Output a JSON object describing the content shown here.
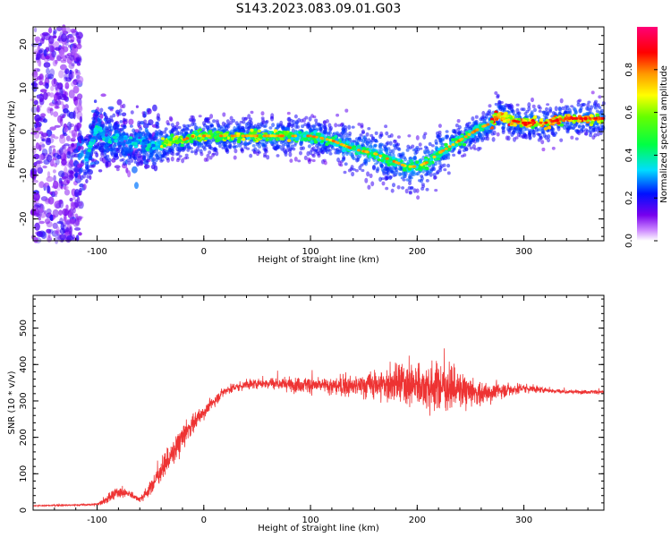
{
  "figure": {
    "title": "S143.2023.083.09.01.G03"
  },
  "chart_data": [
    {
      "type": "heatmap",
      "xlabel": "Height of straight line (km)",
      "ylabel": "Frequency (Hz)",
      "xlim": [
        -160,
        375
      ],
      "ylim": [
        -25,
        24
      ],
      "xticks": [
        -100,
        0,
        100,
        200,
        300
      ],
      "yticks": [
        -20,
        -10,
        0,
        10,
        20
      ],
      "colorbar": {
        "label": "Normalized spectral amplitude",
        "range": [
          0,
          1
        ],
        "ticks": [
          "0.0",
          "0.2",
          "0.4",
          "0.6",
          "0.8"
        ],
        "colormap": "rainbow (purple-blue-cyan-green-yellow-orange-red-magenta)"
      },
      "ridge": {
        "description": "Frequency ridge of peak spectral amplitude vs height",
        "x": [
          -120,
          -110,
          -100,
          -90,
          -80,
          -70,
          -60,
          -50,
          -40,
          -30,
          -20,
          -10,
          0,
          20,
          40,
          60,
          80,
          100,
          120,
          140,
          160,
          180,
          190,
          200,
          210,
          220,
          240,
          260,
          270,
          275,
          280,
          300,
          320,
          340,
          360,
          375
        ],
        "y": [
          -5,
          -6,
          1,
          -2,
          -1,
          -3,
          -2,
          -3,
          -3,
          -2,
          -2,
          -1,
          -1,
          -1,
          -1,
          -1,
          -1,
          -1,
          -2,
          -4,
          -5,
          -7,
          -8,
          -8,
          -7,
          -5,
          -2,
          1,
          2,
          4,
          3,
          2,
          2,
          3,
          3,
          3
        ]
      }
    },
    {
      "type": "line",
      "xlabel": "Height of straight line (km)",
      "ylabel": "SNR (10 * v/v)",
      "xlim": [
        -160,
        375
      ],
      "ylim": [
        0,
        590
      ],
      "xticks": [
        -100,
        0,
        100,
        200,
        300
      ],
      "yticks": [
        0,
        100,
        200,
        300,
        400,
        500
      ],
      "color": "#ee3333",
      "series": [
        {
          "x": [
            -160,
            -120,
            -100,
            -90,
            -80,
            -70,
            -60,
            -50,
            -40,
            -30,
            -20,
            -10,
            0,
            10,
            20,
            40,
            60,
            80,
            100,
            120,
            140,
            160,
            180,
            200,
            220,
            240,
            260,
            280,
            300,
            320,
            340,
            360,
            375
          ],
          "y": [
            12,
            14,
            16,
            30,
            50,
            45,
            30,
            60,
            110,
            150,
            200,
            240,
            270,
            300,
            330,
            345,
            350,
            345,
            345,
            340,
            340,
            345,
            345,
            345,
            340,
            330,
            320,
            330,
            335,
            330,
            325,
            325,
            325
          ],
          "spread": [
            3,
            4,
            6,
            25,
            30,
            20,
            15,
            35,
            50,
            60,
            70,
            50,
            35,
            30,
            25,
            25,
            30,
            35,
            40,
            45,
            50,
            75,
            100,
            120,
            120,
            90,
            60,
            40,
            25,
            15,
            10,
            10,
            10
          ]
        }
      ]
    }
  ]
}
